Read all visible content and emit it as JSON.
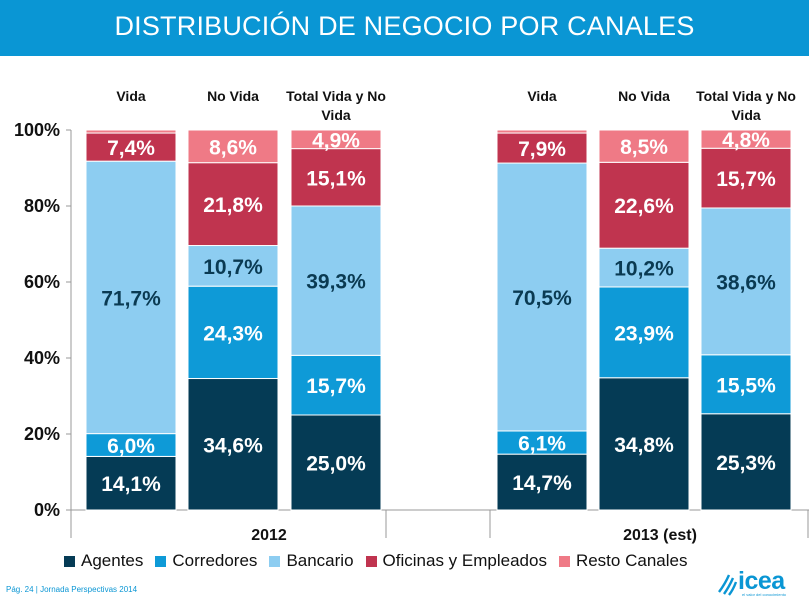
{
  "title": "DISTRIBUCIÓN DE NEGOCIO POR CANALES",
  "footer": "Pág. 24 | Jornada Perspectivas 2014",
  "logo": {
    "text": "icea",
    "tagline": "el valor del conocimiento"
  },
  "chart_data": {
    "type": "bar",
    "stacked": true,
    "percent": true,
    "ylim": [
      0,
      100
    ],
    "yticks": [
      "0%",
      "20%",
      "40%",
      "60%",
      "80%",
      "100%"
    ],
    "groups": [
      {
        "label": "2012",
        "bars": [
          "Vida",
          "No Vida",
          "Total Vida y No Vida"
        ]
      },
      {
        "label": "2013 (est)",
        "bars": [
          "Vida",
          "No Vida",
          "Total Vida y No Vida"
        ]
      }
    ],
    "categories": [
      "Vida",
      "No Vida",
      "Total Vida y No Vida",
      "Vida",
      "No Vida",
      "Total Vida y No Vida"
    ],
    "series": [
      {
        "name": "Agentes",
        "color": "#053b55",
        "values": [
          14.1,
          34.6,
          25.0,
          14.7,
          34.8,
          25.3
        ],
        "labels": [
          "14,1%",
          "34,6%",
          "25,0%",
          "14,7%",
          "34,8%",
          "25,3%"
        ]
      },
      {
        "name": "Corredores",
        "color": "#0e9ad7",
        "values": [
          6.0,
          24.3,
          15.7,
          6.1,
          23.9,
          15.5
        ],
        "labels": [
          "6,0%",
          "24,3%",
          "15,7%",
          "6,1%",
          "23,9%",
          "15,5%"
        ]
      },
      {
        "name": "Bancario",
        "color": "#8dcdf1",
        "values": [
          71.7,
          10.7,
          39.3,
          70.5,
          10.2,
          38.6
        ],
        "labels": [
          "71,7%",
          "10,7%",
          "39,3%",
          "70,5%",
          "10,2%",
          "38,6%"
        ]
      },
      {
        "name": "Oficinas y Empleados",
        "color": "#c0344f",
        "values": [
          7.4,
          21.8,
          15.1,
          7.9,
          22.6,
          15.7
        ],
        "labels": [
          "7,4%",
          "21,8%",
          "15,1%",
          "7,9%",
          "22,6%",
          "15,7%"
        ]
      },
      {
        "name": "Resto Canales",
        "color": "#ef7a86",
        "values": [
          0.8,
          8.6,
          4.9,
          0.8,
          8.5,
          4.8
        ],
        "labels": [
          "",
          "8,6%",
          "4,9%",
          "",
          "8,5%",
          "4,8%"
        ]
      }
    ],
    "grid": false,
    "legend": "bottom"
  }
}
